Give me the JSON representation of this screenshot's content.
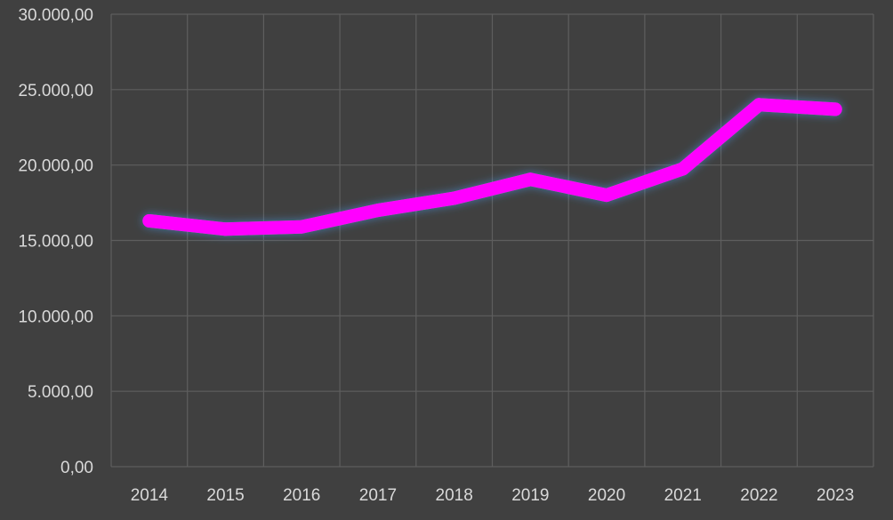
{
  "chart_data": {
    "type": "line",
    "title": "",
    "xlabel": "",
    "ylabel": "",
    "categories": [
      "2014",
      "2015",
      "2016",
      "2017",
      "2018",
      "2019",
      "2020",
      "2021",
      "2022",
      "2023"
    ],
    "series": [
      {
        "values": [
          16300,
          15750,
          15900,
          17000,
          17800,
          19050,
          18000,
          19750,
          24000,
          23700
        ]
      }
    ],
    "ylim": [
      0,
      30000
    ],
    "yticks": [
      0,
      5000,
      10000,
      15000,
      20000,
      25000,
      30000
    ],
    "ytick_labels": [
      "0,00",
      "5.000,00",
      "10.000,00",
      "15.000,00",
      "20.000,00",
      "25.000,00",
      "30.000,00"
    ],
    "grid": true,
    "legend": "none",
    "colors": {
      "background": "#404040",
      "grid": "#5e5e5e",
      "line": "#ff00ff",
      "glow": "#4aa3ff",
      "text": "#d9d9d9"
    }
  }
}
